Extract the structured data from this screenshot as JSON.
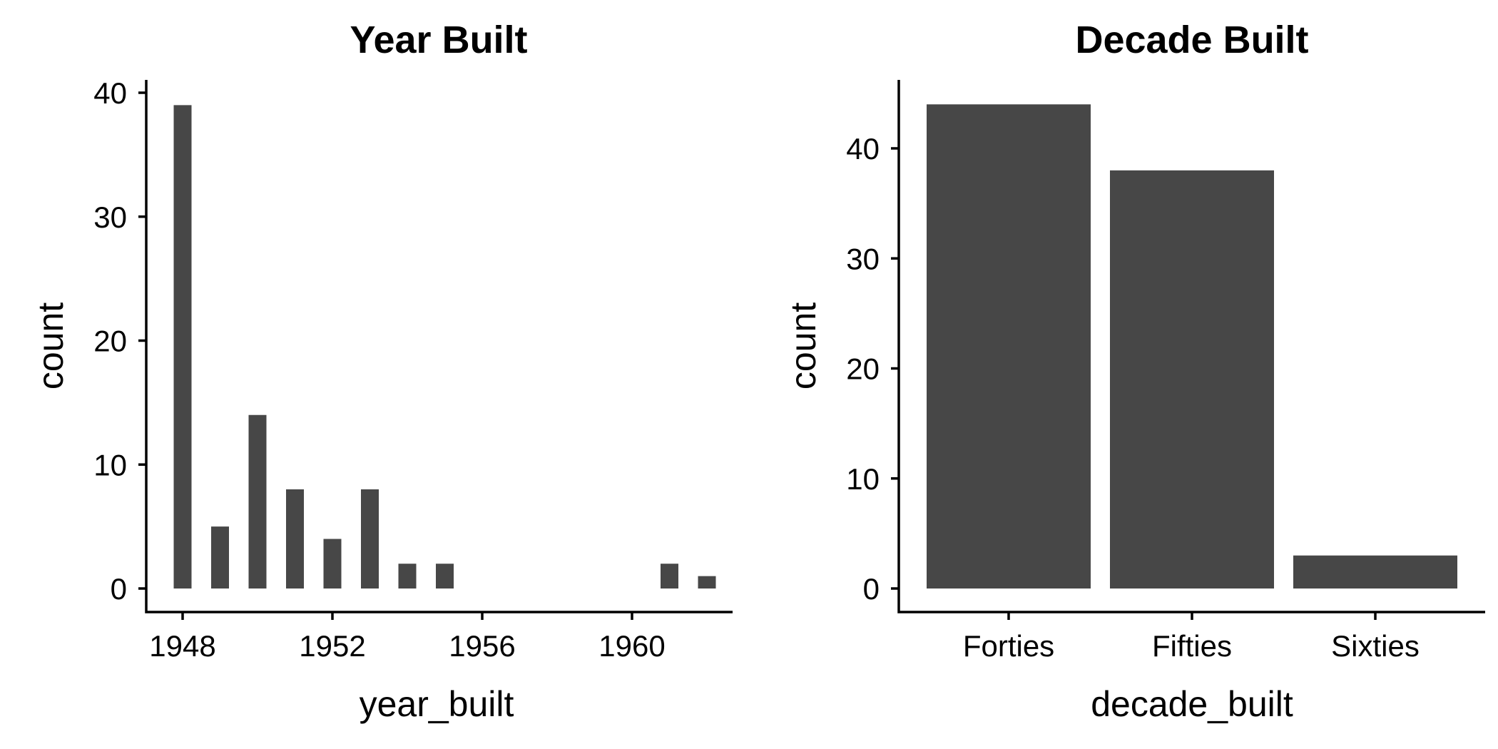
{
  "chart_data": [
    {
      "type": "bar",
      "title": "Year Built",
      "xlabel": "year_built",
      "ylabel": "count",
      "x": [
        1948,
        1949,
        1950,
        1951,
        1952,
        1953,
        1954,
        1955,
        1961,
        1962
      ],
      "values": [
        39,
        5,
        14,
        8,
        4,
        8,
        2,
        2,
        2,
        1
      ],
      "xticks": [
        1948,
        1952,
        1956,
        1960
      ],
      "xtick_labels": [
        "1948",
        "1952",
        "1956",
        "1960"
      ],
      "xlim": [
        1947,
        1963
      ],
      "yticks": [
        0,
        10,
        20,
        30,
        40
      ],
      "ytick_labels": [
        "0",
        "10",
        "20",
        "30",
        "40"
      ],
      "ylim": [
        0,
        40
      ],
      "bar_color": "#474747",
      "grid": false,
      "legend": "none"
    },
    {
      "type": "bar",
      "title": "Decade Built",
      "xlabel": "decade_built",
      "ylabel": "count",
      "categories": [
        "Forties",
        "Fifties",
        "Sixties"
      ],
      "values": [
        44,
        38,
        3
      ],
      "yticks": [
        0,
        10,
        20,
        30,
        40
      ],
      "ytick_labels": [
        "0",
        "10",
        "20",
        "30",
        "40"
      ],
      "ylim": [
        0,
        46
      ],
      "bar_color": "#474747",
      "grid": false,
      "legend": "none"
    }
  ]
}
